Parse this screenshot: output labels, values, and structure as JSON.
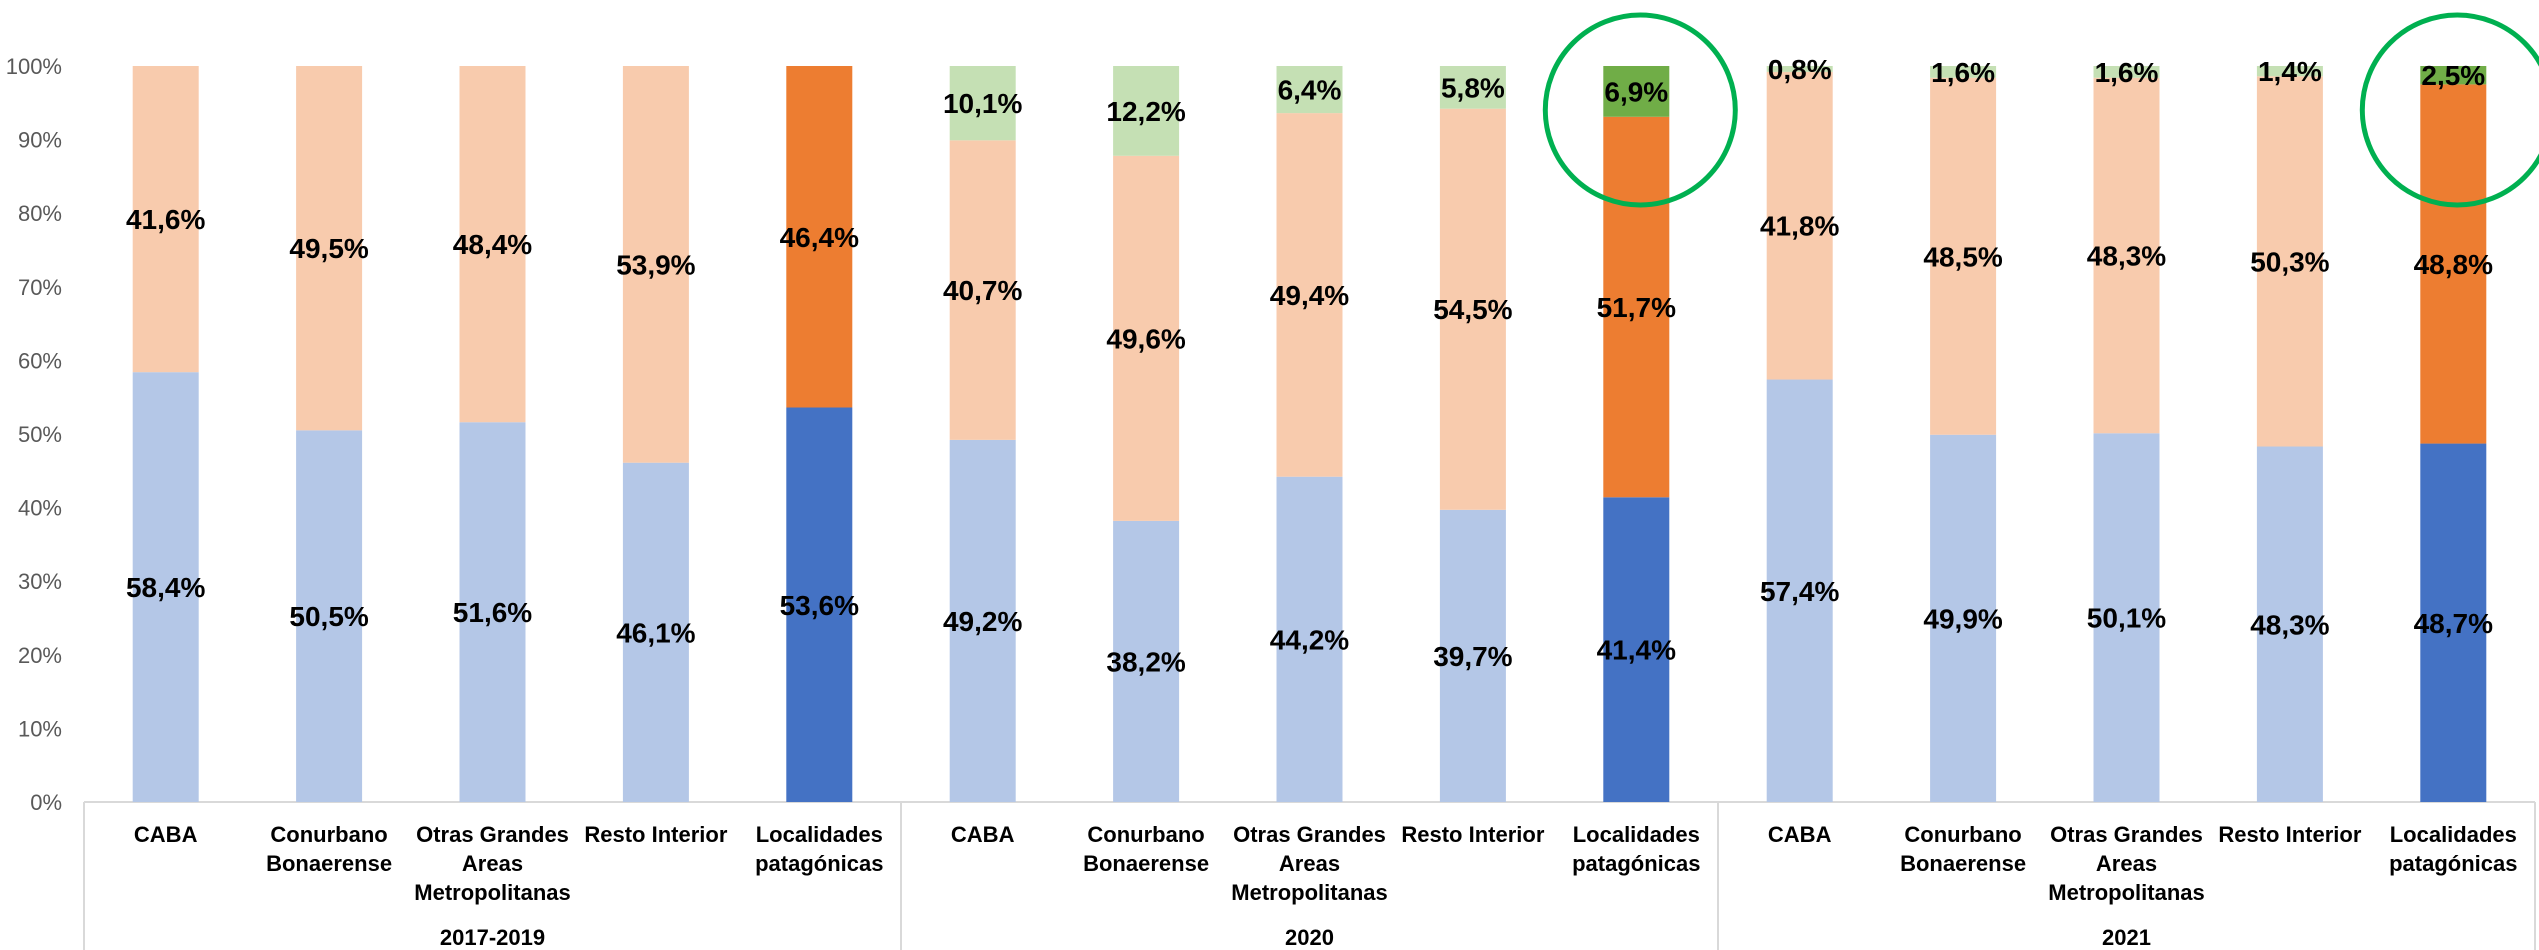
{
  "chart_data": {
    "type": "bar",
    "stacked": true,
    "percent_stacked": true,
    "title": "",
    "xlabel": "",
    "ylabel": "",
    "ylim": [
      0,
      100
    ],
    "y_ticks": [
      "0%",
      "10%",
      "20%",
      "30%",
      "40%",
      "50%",
      "60%",
      "70%",
      "80%",
      "90%",
      "100%"
    ],
    "grid": false,
    "legend": "none",
    "groups": [
      "2017-2019",
      "2020",
      "2021"
    ],
    "categories": [
      "CABA",
      "Conurbano Bonaerense",
      "Otras Grandes Areas Metropolitanas",
      "Resto Interior",
      "Localidades patagónicas"
    ],
    "category_labels": [
      [
        "CABA"
      ],
      [
        "Conurbano",
        "Bonaerense"
      ],
      [
        "Otras Grandes",
        "Areas",
        "Metropolitanas"
      ],
      [
        "Resto Interior"
      ],
      [
        "Localidades",
        "patagónicas"
      ]
    ],
    "series": [
      {
        "segment": "bottom",
        "values": [
          [
            58.4,
            50.5,
            51.6,
            46.1,
            53.6
          ],
          [
            49.2,
            38.2,
            44.2,
            39.7,
            41.4
          ],
          [
            57.4,
            49.9,
            50.1,
            48.3,
            48.7
          ]
        ]
      },
      {
        "segment": "middle",
        "values": [
          [
            41.6,
            49.5,
            48.4,
            53.9,
            46.4
          ],
          [
            40.7,
            49.6,
            49.4,
            54.5,
            51.7
          ],
          [
            41.8,
            48.5,
            48.3,
            50.3,
            48.8
          ]
        ]
      },
      {
        "segment": "top",
        "values": [
          [
            null,
            null,
            null,
            null,
            null
          ],
          [
            10.1,
            12.2,
            6.4,
            5.8,
            6.9
          ],
          [
            0.8,
            1.6,
            1.6,
            1.4,
            2.5
          ]
        ]
      }
    ],
    "data_labels": {
      "bottom": [
        [
          "58,4%",
          "50,5%",
          "51,6%",
          "46,1%",
          "53,6%"
        ],
        [
          "49,2%",
          "38,2%",
          "44,2%",
          "39,7%",
          "41,4%"
        ],
        [
          "57,4%",
          "49,9%",
          "50,1%",
          "48,3%",
          "48,7%"
        ]
      ],
      "middle": [
        [
          "41,6%",
          "49,5%",
          "48,4%",
          "53,9%",
          "46,4%"
        ],
        [
          "40,7%",
          "49,6%",
          "49,4%",
          "54,5%",
          "51,7%"
        ],
        [
          "41,8%",
          "48,5%",
          "48,3%",
          "50,3%",
          "48,8%"
        ]
      ],
      "top": [
        [
          "",
          "",
          "",
          "",
          ""
        ],
        [
          "10,1%",
          "12,2%",
          "6,4%",
          "5,8%",
          "6,9%"
        ],
        [
          "0,8%",
          "1,6%",
          "1,6%",
          "1,4%",
          "2,5%"
        ]
      ]
    },
    "colors": {
      "bottom": "#b4c7e7",
      "middle": "#f8cbad",
      "top": "#c5e0b4",
      "bottom_highlight": "#4472c4",
      "middle_highlight": "#ed7d31",
      "top_highlight": "#70ad47",
      "circle": "#00b050"
    },
    "highlighted_category": "Localidades patagónicas",
    "circled": [
      {
        "group": "2020",
        "category": "Localidades patagónicas"
      },
      {
        "group": "2021",
        "category": "Localidades patagónicas"
      }
    ]
  }
}
